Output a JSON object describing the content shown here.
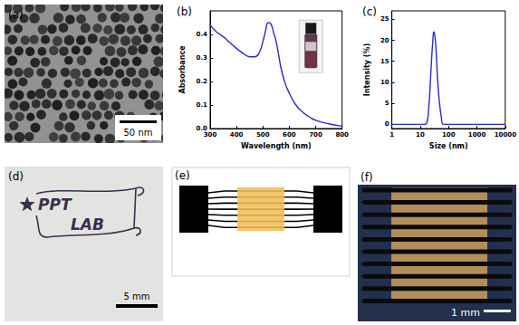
{
  "panel_a": {
    "label": "(a)",
    "scale_bar": "50 nm"
  },
  "chart_data": [
    {
      "type": "line",
      "title": "(b)",
      "xlabel": "Wavelength (nm)",
      "ylabel": "Absorbance",
      "color": "#2a2ad0",
      "x": [
        300,
        325,
        350,
        375,
        400,
        425,
        450,
        470,
        485,
        500,
        510,
        520,
        530,
        540,
        550,
        560,
        570,
        585,
        600,
        625,
        650,
        675,
        700,
        750,
        800
      ],
      "values": [
        0.44,
        0.41,
        0.39,
        0.365,
        0.34,
        0.32,
        0.305,
        0.305,
        0.32,
        0.37,
        0.415,
        0.45,
        0.445,
        0.41,
        0.37,
        0.31,
        0.25,
        0.19,
        0.15,
        0.1,
        0.07,
        0.05,
        0.035,
        0.02,
        0.01
      ],
      "xlim": [
        300,
        800
      ],
      "xticks": [
        300,
        400,
        500,
        600,
        700,
        800
      ],
      "ylim": [
        0,
        0.5
      ],
      "yticks": [
        {
          "value": 0,
          "label": "0.0"
        },
        {
          "value": 0.1,
          "label": "0.1"
        },
        {
          "value": 0.2,
          "label": "0.2"
        },
        {
          "value": 0.3,
          "label": "0.3"
        },
        {
          "value": 0.4,
          "label": "0.4"
        }
      ],
      "grid": false
    },
    {
      "type": "line",
      "title": "(c)",
      "xlabel": "Size (nm)",
      "ylabel": "Intensity (%)",
      "color": "#2a2ad0",
      "log": "x",
      "x": [
        1,
        10,
        15,
        18,
        20,
        22,
        24,
        26,
        28,
        30,
        33,
        36,
        40,
        45,
        50,
        55,
        65,
        100,
        1000,
        10000
      ],
      "values": [
        0,
        0,
        0,
        1,
        4,
        8,
        13,
        17,
        20,
        22,
        21,
        18,
        12,
        7,
        4,
        2,
        0,
        0,
        0,
        0
      ],
      "xlim": [
        1,
        10000
      ],
      "xticks": [
        1,
        10,
        100,
        1000,
        10000
      ],
      "ylim": [
        -1,
        27
      ],
      "yticks": [
        0,
        5,
        10,
        15,
        20,
        25
      ],
      "grid": false
    }
  ],
  "panel_d": {
    "label": "(d)",
    "logo": [
      "PPT",
      "LAB"
    ],
    "scale_bar": "5 mm"
  },
  "panel_e": {
    "label": "(e)"
  },
  "panel_f": {
    "label": "(f)",
    "scale_bar": "1 mm"
  }
}
